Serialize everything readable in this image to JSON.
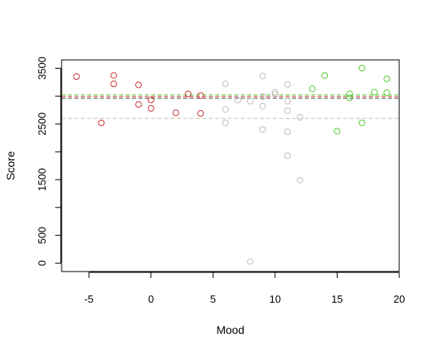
{
  "chart_data": {
    "type": "scatter",
    "title": "",
    "xlabel": "Mood",
    "ylabel": "Score",
    "xlim": [
      -7.2,
      20
    ],
    "ylim": [
      -150,
      3650
    ],
    "xticks": [
      "-5",
      "0",
      "5",
      "10",
      "15",
      "20"
    ],
    "xtick_values": [
      -5,
      0,
      5,
      10,
      15,
      20
    ],
    "yticks": [
      "0",
      "500",
      "1500",
      "2500",
      "3500"
    ],
    "ytick_values": [
      0,
      500,
      1500,
      2500,
      3500
    ],
    "yticks_unlabeled": [
      1000,
      2000,
      3000
    ],
    "grid": false,
    "legend": "none",
    "series": [
      {
        "color": "#cc3333",
        "points": [
          [
            -6,
            3350
          ],
          [
            -4,
            2520
          ],
          [
            -3,
            3370
          ],
          [
            -3,
            3220
          ],
          [
            -1,
            3200
          ],
          [
            -1,
            2850
          ],
          [
            0,
            2930
          ],
          [
            0,
            2780
          ],
          [
            2,
            2700
          ],
          [
            3,
            3040
          ],
          [
            4,
            3010
          ],
          [
            4,
            2690
          ]
        ]
      },
      {
        "color": "#bfbfbf",
        "points": [
          [
            6,
            3220
          ],
          [
            6,
            2760
          ],
          [
            6,
            2520
          ],
          [
            7,
            2930
          ],
          [
            8,
            2910
          ],
          [
            8,
            30
          ],
          [
            9,
            3360
          ],
          [
            9,
            2990
          ],
          [
            9,
            2820
          ],
          [
            9,
            2400
          ],
          [
            10,
            3070
          ],
          [
            10,
            3030
          ],
          [
            11,
            3210
          ],
          [
            11,
            2910
          ],
          [
            11,
            2740
          ],
          [
            11,
            2360
          ],
          [
            11,
            1930
          ],
          [
            12,
            2620
          ],
          [
            12,
            1490
          ]
        ]
      },
      {
        "color": "#55cc33",
        "points": [
          [
            13,
            3130
          ],
          [
            14,
            3370
          ],
          [
            15,
            2370
          ],
          [
            16,
            3040
          ],
          [
            16,
            2970
          ],
          [
            17,
            3500
          ],
          [
            17,
            2520
          ],
          [
            18,
            3070
          ],
          [
            19,
            3310
          ],
          [
            19,
            3060
          ]
        ]
      }
    ],
    "reference_lines": [
      {
        "y": 3020,
        "color": "#55cc33",
        "style": "dashed"
      },
      {
        "y": 2990,
        "color": "#cc3333",
        "style": "dashed"
      },
      {
        "y": 2960,
        "color": "#555555",
        "style": "dashed"
      },
      {
        "y": 2600,
        "color": "#bfbfbf",
        "style": "dashed"
      }
    ]
  }
}
